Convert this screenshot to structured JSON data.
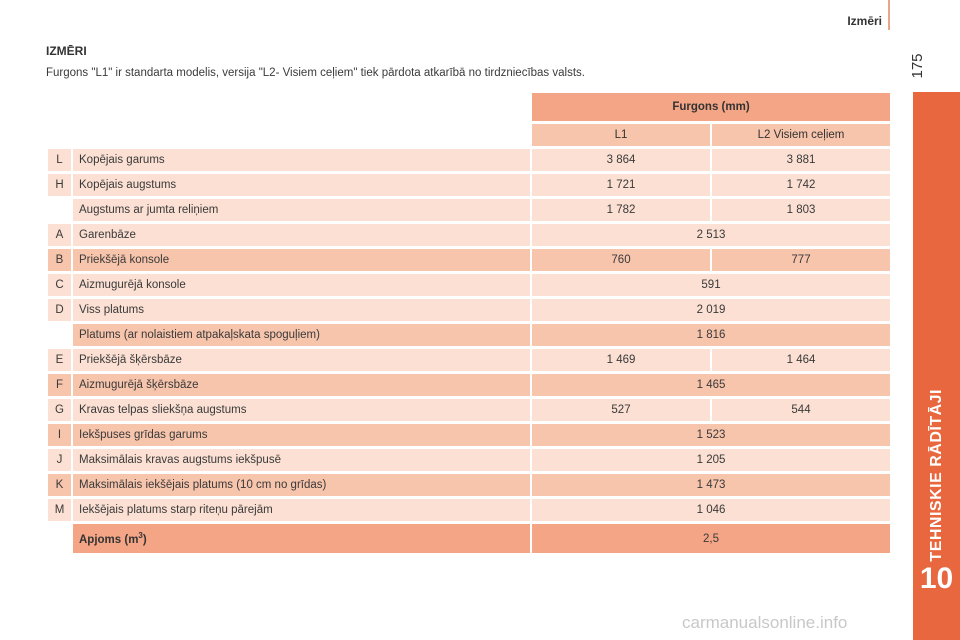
{
  "header": {
    "title": "Izmēri",
    "page_number": "175"
  },
  "side_tab": {
    "label": "TEHNISKIE RĀDĪTĀJI",
    "chapter_number": "10"
  },
  "section": {
    "title": "IZMĒRI",
    "intro": "Furgons \"L1\" ir standarta modelis, versija \"L2- Visiem ceļiem\" tiek pārdota atkarībā no tirdzniecības valsts."
  },
  "table": {
    "group_header": "Furgons (mm)",
    "columns": [
      "L1",
      "L2 Visiem ceļiem"
    ],
    "rows": [
      {
        "code": "L",
        "label": "Kopējais garums",
        "values": [
          "3 864",
          "3 881"
        ],
        "shade": "light"
      },
      {
        "code": "H",
        "label": "Kopējais augstums",
        "values": [
          "1 721",
          "1 742"
        ],
        "shade": "light"
      },
      {
        "code": "",
        "label": "Augstums ar jumta reliņiem",
        "values": [
          "1 782",
          "1 803"
        ],
        "shade": "light"
      },
      {
        "code": "A",
        "label": "Garenbāze",
        "values": [
          "2 513"
        ],
        "shade": "light"
      },
      {
        "code": "B",
        "label": "Priekšējā konsole",
        "values": [
          "760",
          "777"
        ],
        "shade": "mid"
      },
      {
        "code": "C",
        "label": "Aizmugurējā konsole",
        "values": [
          "591"
        ],
        "shade": "light"
      },
      {
        "code": "D",
        "label": "Viss platums",
        "values": [
          "2 019"
        ],
        "shade": "light"
      },
      {
        "code": "",
        "label": "Platums (ar nolaistiem atpakaļskata spoguļiem)",
        "values": [
          "1 816"
        ],
        "shade": "mid"
      },
      {
        "code": "E",
        "label": "Priekšējā šķērsbāze",
        "values": [
          "1 469",
          "1 464"
        ],
        "shade": "light"
      },
      {
        "code": "F",
        "label": "Aizmugurējā šķērsbāze",
        "values": [
          "1 465"
        ],
        "shade": "mid"
      },
      {
        "code": "G",
        "label": "Kravas telpas sliekšņa augstums",
        "values": [
          "527",
          "544"
        ],
        "shade": "light"
      },
      {
        "code": "I",
        "label": "Iekšpuses grīdas garums",
        "values": [
          "1 523"
        ],
        "shade": "mid"
      },
      {
        "code": "J",
        "label": "Maksimālais kravas augstums iekšpusē",
        "values": [
          "1 205"
        ],
        "shade": "light"
      },
      {
        "code": "K",
        "label": "Maksimālais iekšējais platums (10 cm no grīdas)",
        "values": [
          "1 473"
        ],
        "shade": "mid"
      },
      {
        "code": "M",
        "label": "Iekšējais platums starp riteņu pārejām",
        "values": [
          "1 046"
        ],
        "shade": "light"
      }
    ],
    "total": {
      "label": "Apjoms (m",
      "label_sup": "3",
      "label_end": ")",
      "value": "2,5"
    }
  },
  "watermark": "carmanualsonline.info"
}
